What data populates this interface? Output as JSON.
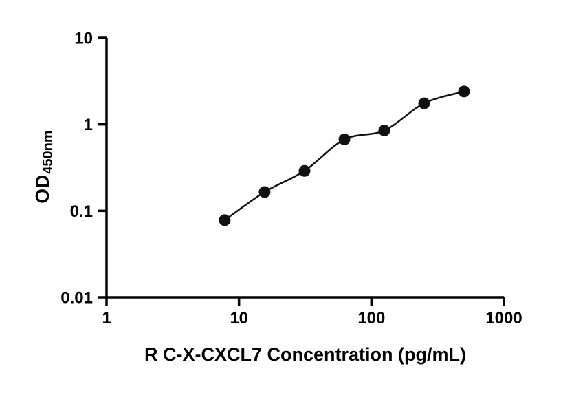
{
  "figure": {
    "background": "#ffffff",
    "axis_color": "#000000",
    "point_color": "#111111",
    "curve_color": "#111111"
  },
  "chart_data": {
    "type": "scatter",
    "title": "",
    "xlabel": "R C-X-CXCL7 Concentration (pg/mL)",
    "ylabel_main": "OD",
    "ylabel_sub": "450nm",
    "x_scale": "log",
    "y_scale": "log",
    "xlim": [
      1,
      1000
    ],
    "ylim": [
      0.01,
      10
    ],
    "x_ticks": [
      1,
      10,
      100,
      1000
    ],
    "x_tick_labels": [
      "1",
      "10",
      "100",
      "1000"
    ],
    "y_ticks": [
      0.01,
      0.1,
      1,
      10
    ],
    "y_tick_labels": [
      "0.01",
      "0.1",
      "1",
      "10"
    ],
    "grid": false,
    "legend": "none",
    "series": [
      {
        "marker": "filled-circle",
        "line": "smooth-fit-curve",
        "x": [
          7.8,
          15.6,
          31.25,
          62.5,
          125,
          250,
          500
        ],
        "y": [
          0.078,
          0.165,
          0.29,
          0.67,
          0.85,
          1.75,
          2.4
        ]
      }
    ]
  }
}
